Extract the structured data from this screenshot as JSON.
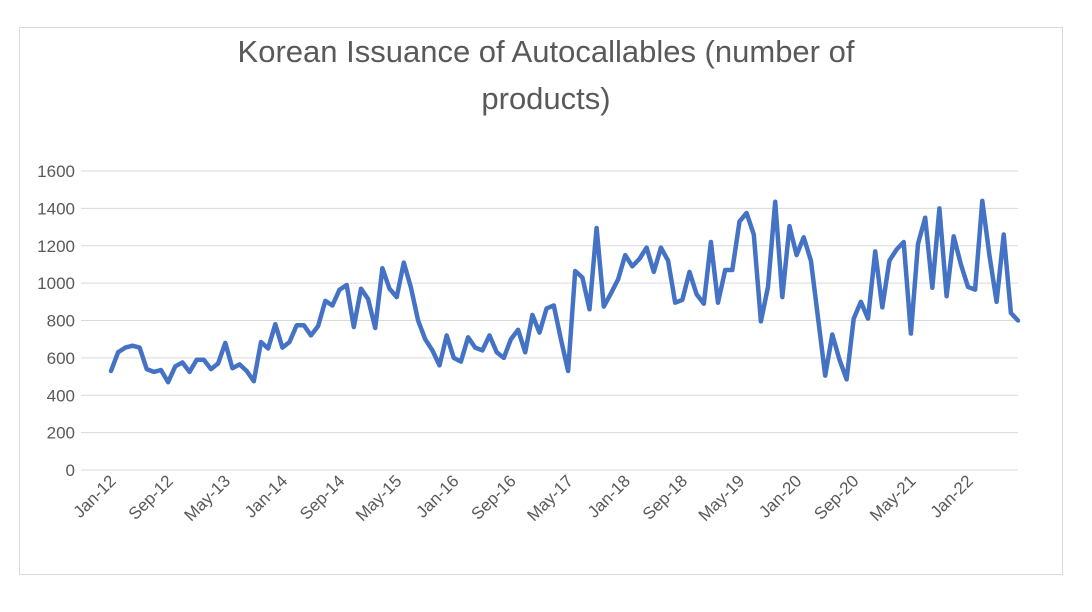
{
  "chart_data": {
    "type": "line",
    "title": "Korean Issuance of Autocallables (number of products)",
    "xlabel": "",
    "ylabel": "",
    "ylim": [
      0,
      1600
    ],
    "yticks": [
      0,
      200,
      400,
      600,
      800,
      1000,
      1200,
      1400,
      1600
    ],
    "x_tick_labels": [
      "Jan-12",
      "Sep-12",
      "May-13",
      "Jan-14",
      "Sep-14",
      "May-15",
      "Jan-16",
      "Sep-16",
      "May-17",
      "Jan-18",
      "Sep-18",
      "May-19",
      "Jan-20",
      "Sep-20",
      "May-21",
      "Jan-22"
    ],
    "x_start": "Jan-12",
    "x_end": "Nov-22",
    "grid": true,
    "legend": "none",
    "line_color": "#4472c4",
    "values": [
      530,
      630,
      655,
      665,
      655,
      540,
      525,
      535,
      470,
      555,
      575,
      525,
      590,
      590,
      540,
      570,
      680,
      545,
      565,
      530,
      475,
      685,
      650,
      780,
      655,
      685,
      775,
      775,
      720,
      770,
      905,
      880,
      965,
      990,
      765,
      970,
      915,
      760,
      1080,
      970,
      925,
      1110,
      975,
      800,
      700,
      640,
      560,
      720,
      600,
      580,
      710,
      655,
      640,
      720,
      630,
      600,
      700,
      750,
      630,
      830,
      735,
      865,
      880,
      700,
      530,
      1065,
      1030,
      860,
      1295,
      875,
      945,
      1020,
      1150,
      1090,
      1130,
      1190,
      1060,
      1190,
      1120,
      895,
      910,
      1060,
      940,
      890,
      1220,
      895,
      1070,
      1070,
      1330,
      1375,
      1260,
      795,
      980,
      1435,
      925,
      1305,
      1150,
      1245,
      1120,
      815,
      505,
      725,
      590,
      485,
      810,
      900,
      810,
      1170,
      870,
      1120,
      1180,
      1220,
      730,
      1210,
      1350,
      975,
      1400,
      930,
      1250,
      1100,
      980,
      965,
      1440,
      1150,
      900,
      1260,
      840,
      800
    ]
  }
}
